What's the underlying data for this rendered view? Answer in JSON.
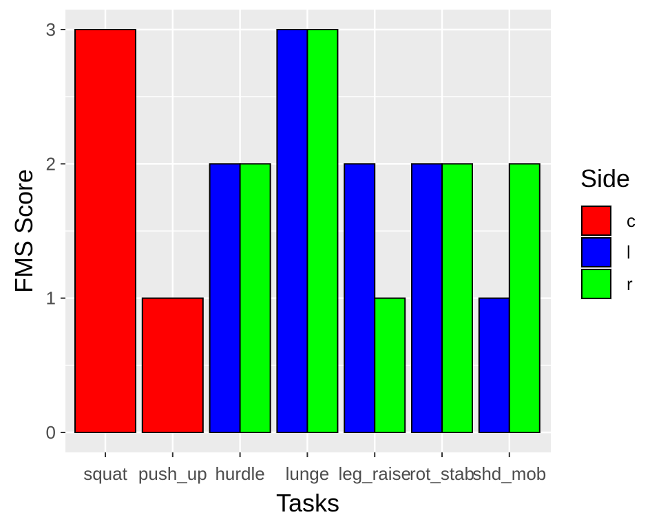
{
  "chart_data": {
    "type": "bar",
    "title": "",
    "xlabel": "Tasks",
    "ylabel": "FMS Score",
    "ylim": [
      0,
      3
    ],
    "yticks": [
      "0",
      "1",
      "2",
      "3"
    ],
    "grid": true,
    "categories": [
      "squat",
      "push_up",
      "hurdle",
      "lunge",
      "leg_raise",
      "rot_stab",
      "shd_mob"
    ],
    "legend": {
      "title": "Side",
      "position": "right",
      "entries": [
        {
          "label": "c",
          "color": "#FF0000"
        },
        {
          "label": "l",
          "color": "#0000FF"
        },
        {
          "label": "r",
          "color": "#00FF00"
        }
      ]
    },
    "bars": [
      {
        "category": "squat",
        "side": "c",
        "value": 3
      },
      {
        "category": "push_up",
        "side": "c",
        "value": 1
      },
      {
        "category": "hurdle",
        "side": "l",
        "value": 2
      },
      {
        "category": "hurdle",
        "side": "r",
        "value": 2
      },
      {
        "category": "lunge",
        "side": "l",
        "value": 3
      },
      {
        "category": "lunge",
        "side": "r",
        "value": 3
      },
      {
        "category": "leg_raise",
        "side": "l",
        "value": 2
      },
      {
        "category": "leg_raise",
        "side": "r",
        "value": 1
      },
      {
        "category": "rot_stab",
        "side": "l",
        "value": 2
      },
      {
        "category": "rot_stab",
        "side": "r",
        "value": 2
      },
      {
        "category": "shd_mob",
        "side": "l",
        "value": 1
      },
      {
        "category": "shd_mob",
        "side": "r",
        "value": 2
      }
    ]
  }
}
